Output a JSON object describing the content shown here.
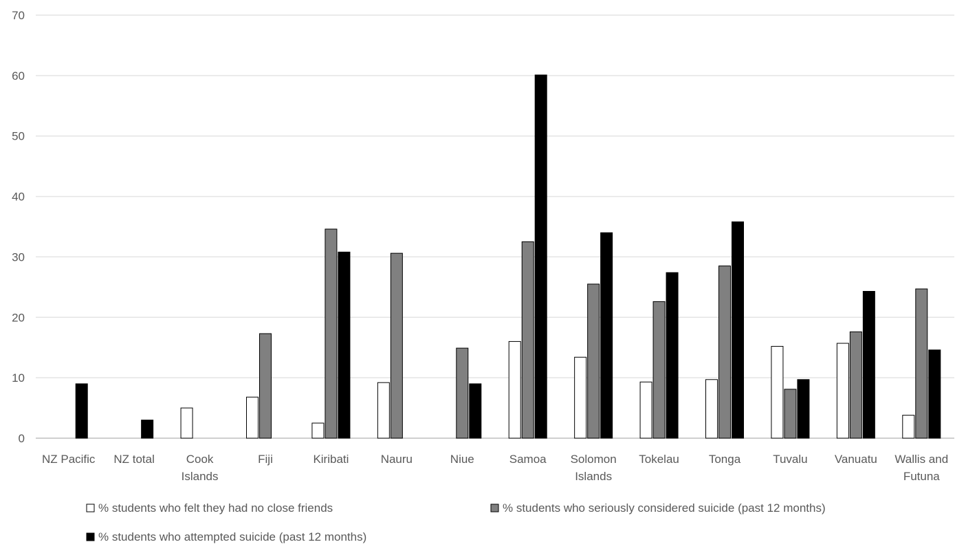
{
  "chart_data": {
    "type": "bar",
    "title": "",
    "xlabel": "",
    "ylabel": "",
    "ylim": [
      0,
      70
    ],
    "yticks": [
      0,
      10,
      20,
      30,
      40,
      50,
      60,
      70
    ],
    "grid": true,
    "legend_position": "bottom",
    "categories": [
      "NZ Pacific",
      "NZ total",
      "Cook Islands",
      "Fiji",
      "Kiribati",
      "Nauru",
      "Niue",
      "Samoa",
      "Solomon Islands",
      "Tokelau",
      "Tonga",
      "Tuvalu",
      "Vanuatu",
      "Wallis and Futuna"
    ],
    "category_lines": [
      [
        "NZ Pacific"
      ],
      [
        "NZ total"
      ],
      [
        "Cook",
        "Islands"
      ],
      [
        "Fiji"
      ],
      [
        "Kiribati"
      ],
      [
        "Nauru"
      ],
      [
        "Niue"
      ],
      [
        "Samoa"
      ],
      [
        "Solomon",
        "Islands"
      ],
      [
        "Tokelau"
      ],
      [
        "Tonga"
      ],
      [
        "Tuvalu"
      ],
      [
        "Vanuatu"
      ],
      [
        "Wallis and",
        "Futuna"
      ]
    ],
    "series": [
      {
        "name": "% students who felt they had no close friends",
        "color": "#ffffff",
        "values": [
          null,
          null,
          5.0,
          6.8,
          2.5,
          9.2,
          null,
          16.0,
          13.4,
          9.3,
          9.7,
          15.2,
          15.7,
          3.8
        ]
      },
      {
        "name": "% students who seriously considered suicide (past 12 months)",
        "color": "#808080",
        "values": [
          null,
          null,
          null,
          17.3,
          34.6,
          30.6,
          14.9,
          32.5,
          25.5,
          22.6,
          28.5,
          8.1,
          17.6,
          24.7
        ]
      },
      {
        "name": "% students who attempted suicide (past 12 months)",
        "color": "#000000",
        "values": [
          9.0,
          3.0,
          null,
          null,
          30.8,
          null,
          9.0,
          60.1,
          34.0,
          27.4,
          35.8,
          9.7,
          24.3,
          14.6
        ]
      }
    ]
  }
}
